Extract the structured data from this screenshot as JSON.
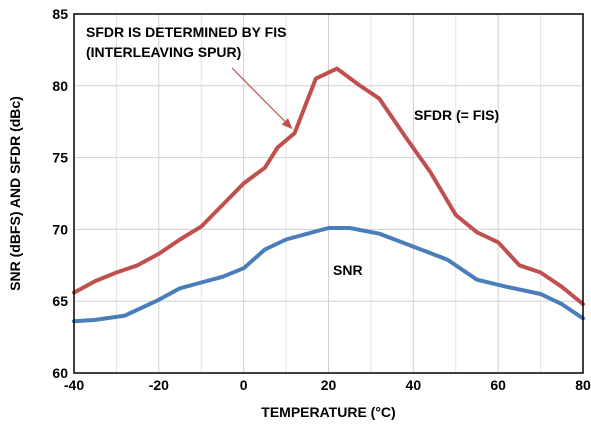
{
  "chart_data": {
    "type": "line",
    "title": "",
    "xlabel": "TEMPERATURE (°C)",
    "ylabel": "SNR (dBFS) AND SFDR (dBc)",
    "xlim": [
      -40,
      80
    ],
    "ylim": [
      60,
      85
    ],
    "xticks": [
      -40,
      -20,
      0,
      20,
      40,
      60,
      80
    ],
    "yticks": [
      60,
      65,
      70,
      75,
      80,
      85
    ],
    "grid": true,
    "series": [
      {
        "name": "SFDR (= FIS)",
        "color": "#c0504d",
        "x": [
          -40,
          -35,
          -30,
          -25,
          -20,
          -15,
          -10,
          -5,
          0,
          5,
          8,
          12,
          17,
          22,
          27,
          32,
          38,
          44,
          50,
          55,
          60,
          65,
          70,
          75,
          80
        ],
        "y": [
          65.6,
          66.4,
          67.0,
          67.5,
          68.3,
          69.3,
          70.2,
          71.7,
          73.2,
          74.3,
          75.7,
          76.7,
          80.5,
          81.2,
          80.1,
          79.1,
          76.5,
          74.0,
          71.0,
          69.8,
          69.1,
          67.5,
          67.0,
          66.0,
          64.8
        ]
      },
      {
        "name": "SNR",
        "color": "#4a7ebb",
        "x": [
          -40,
          -35,
          -28,
          -20,
          -15,
          -10,
          -5,
          0,
          5,
          10,
          15,
          20,
          25,
          32,
          40,
          48,
          55,
          62,
          70,
          75,
          80
        ],
        "y": [
          63.6,
          63.7,
          64.0,
          65.1,
          65.9,
          66.3,
          66.7,
          67.3,
          68.6,
          69.3,
          69.7,
          70.1,
          70.1,
          69.7,
          68.8,
          67.9,
          66.5,
          66.0,
          65.5,
          64.8,
          63.8
        ]
      }
    ],
    "annotations": [
      {
        "text": "SFDR IS DETERMINED BY FIS"
      },
      {
        "text": "(INTERLEAVING SPUR)"
      }
    ]
  }
}
